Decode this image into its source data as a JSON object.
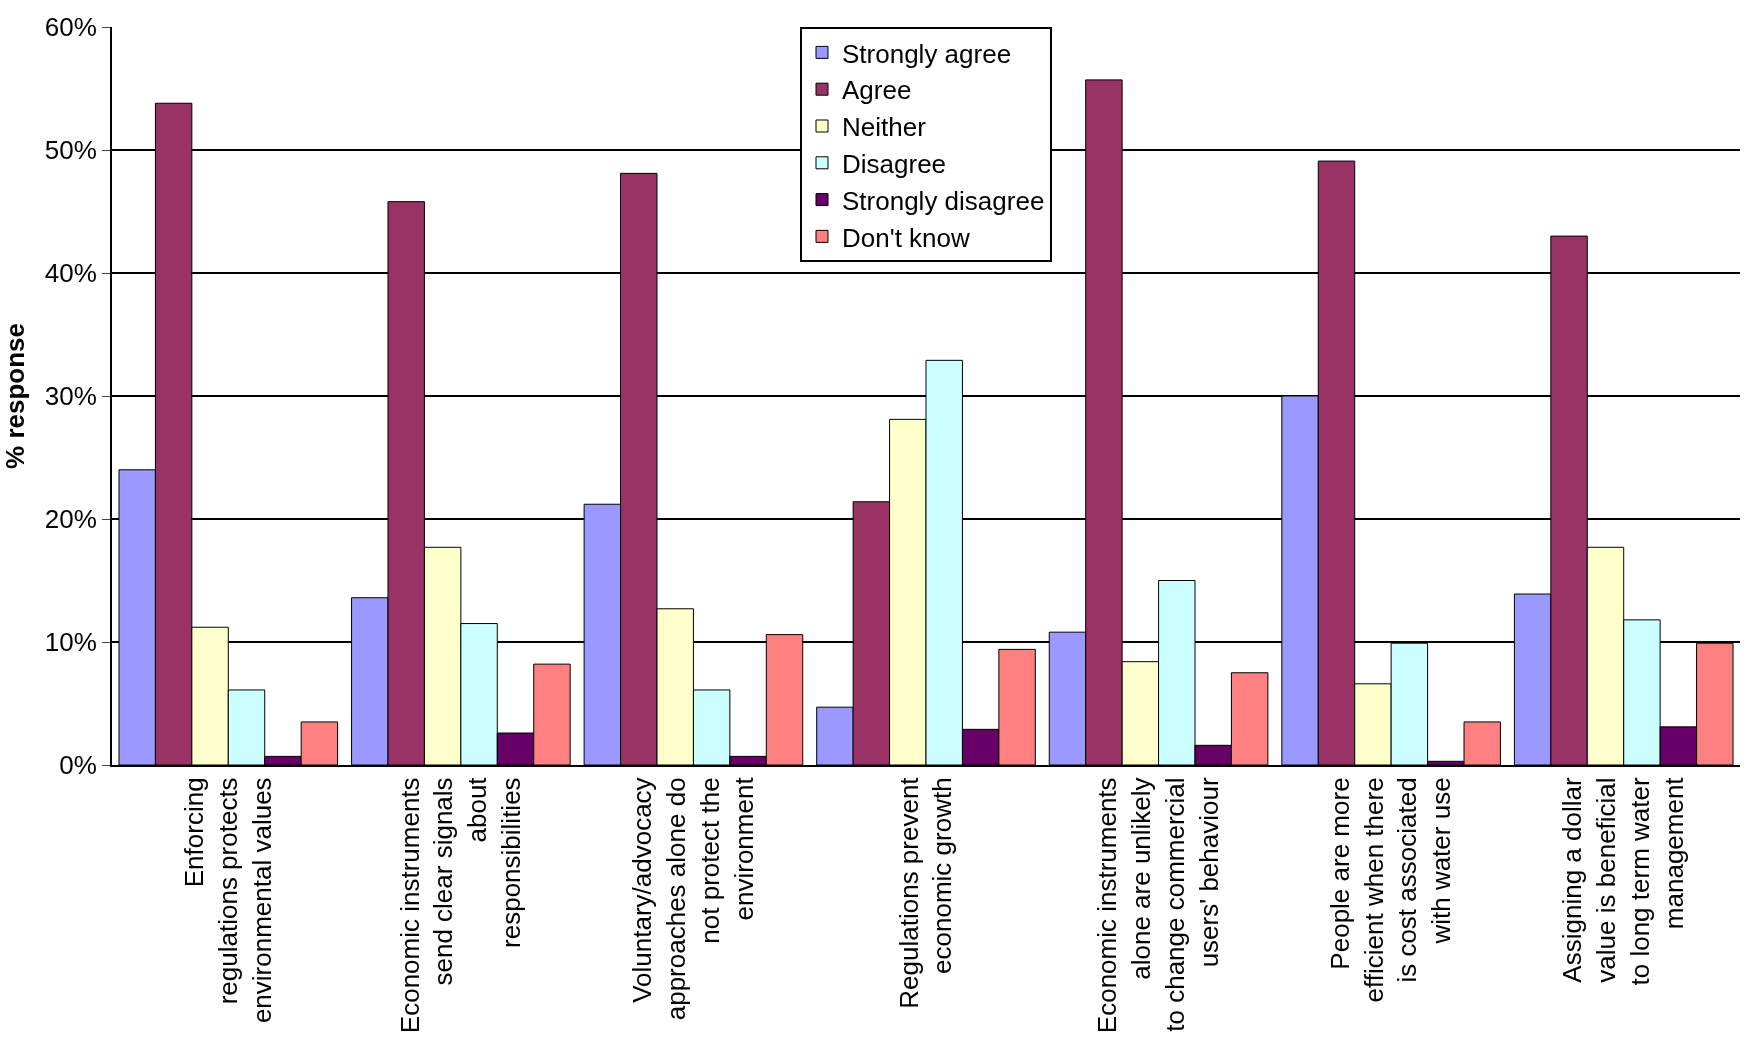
{
  "chart_data": {
    "type": "bar",
    "ylabel": "% response",
    "categories": [
      "Enforcing regulations protects environmental values",
      "Economic instruments send clear signals about responsibilities",
      "Voluntary/advocacy approaches alone do not protect the environment",
      "Regulations prevent economic growth",
      "Economic instruments alone are unlikely to change commercial users' behaviour",
      "People are more efficient when there is cost associated with water use",
      "Assigning a dollar value is beneficial to long term water management"
    ],
    "series": [
      {
        "name": "Strongly agree",
        "color": "#9999ff",
        "values": [
          24,
          13.6,
          21.2,
          4.7,
          10.8,
          30,
          13.9
        ]
      },
      {
        "name": "Agree",
        "color": "#993366",
        "values": [
          53.8,
          45.8,
          48.1,
          21.4,
          55.7,
          49.1,
          43
        ]
      },
      {
        "name": "Neither",
        "color": "#ffffcc",
        "values": [
          11.2,
          17.7,
          12.7,
          28.1,
          8.4,
          6.6,
          17.7
        ]
      },
      {
        "name": "Disagree",
        "color": "#ccffff",
        "values": [
          6.1,
          11.5,
          6.1,
          32.9,
          15,
          9.9,
          11.8
        ]
      },
      {
        "name": "Strongly disagree",
        "color": "#660066",
        "values": [
          0.7,
          2.6,
          0.7,
          2.9,
          1.6,
          0.3,
          3.1
        ]
      },
      {
        "name": "Don't know",
        "color": "#ff8080",
        "values": [
          3.5,
          8.2,
          10.6,
          9.4,
          7.5,
          3.5,
          9.9
        ]
      }
    ],
    "ylim": [
      0,
      60
    ],
    "yticks": [
      {
        "value": 0,
        "label": "0%"
      },
      {
        "value": 10,
        "label": "10%"
      },
      {
        "value": 20,
        "label": "20%"
      },
      {
        "value": 30,
        "label": "30%"
      },
      {
        "value": 40,
        "label": "40%"
      },
      {
        "value": 50,
        "label": "50%"
      },
      {
        "value": 60,
        "label": "60%"
      }
    ],
    "grid": "y",
    "legend": "top"
  }
}
